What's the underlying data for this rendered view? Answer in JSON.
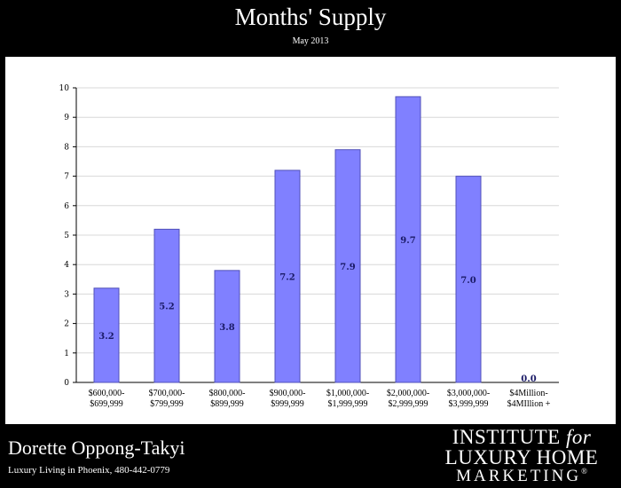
{
  "header": {
    "title": "Months' Supply",
    "subtitle": "May 2013"
  },
  "footer": {
    "agent_name": "Dorette Oppong-Takyi",
    "agent_tagline": "Luxury Living in Phoenix, 480-442-0779",
    "logo_line1": "INSTITUTE",
    "logo_line1_for": "for",
    "logo_line2": "LUXURY HOME",
    "logo_line3": "MARKETING",
    "logo_reg": "®"
  },
  "chart_data": {
    "type": "bar",
    "title": "Months' Supply",
    "subtitle": "May 2013",
    "xlabel": "",
    "ylabel": "",
    "categories": [
      [
        "$600,000-",
        "$699,999"
      ],
      [
        "$700,000-",
        "$799,999"
      ],
      [
        "$800,000-",
        "$899,999"
      ],
      [
        "$900,000-",
        "$999,999"
      ],
      [
        "$1,000,000-",
        "$1,999,999"
      ],
      [
        "$2,000,000-",
        "$2,999,999"
      ],
      [
        "$3,000,000-",
        "$3,999,999"
      ],
      [
        "$4Million-",
        "$4MIllion +"
      ]
    ],
    "values": [
      3.2,
      5.2,
      3.8,
      7.2,
      7.9,
      9.7,
      7.0,
      0.0
    ],
    "data_labels": [
      "3.2",
      "5.2",
      "3.8",
      "7.2",
      "7.9",
      "9.7",
      "7.0",
      "0.0"
    ],
    "ylim": [
      0,
      10
    ],
    "yticks": [
      0,
      1,
      2,
      3,
      4,
      5,
      6,
      7,
      8,
      9,
      10
    ],
    "grid": true,
    "colors": {
      "bar_fill": "#8080ff",
      "bar_stroke": "#5050b8",
      "data_label": "#1a1a66",
      "grid": "#d8d8d8",
      "axis": "#000000",
      "page_background": "#000000",
      "panel_background": "#ffffff"
    }
  }
}
